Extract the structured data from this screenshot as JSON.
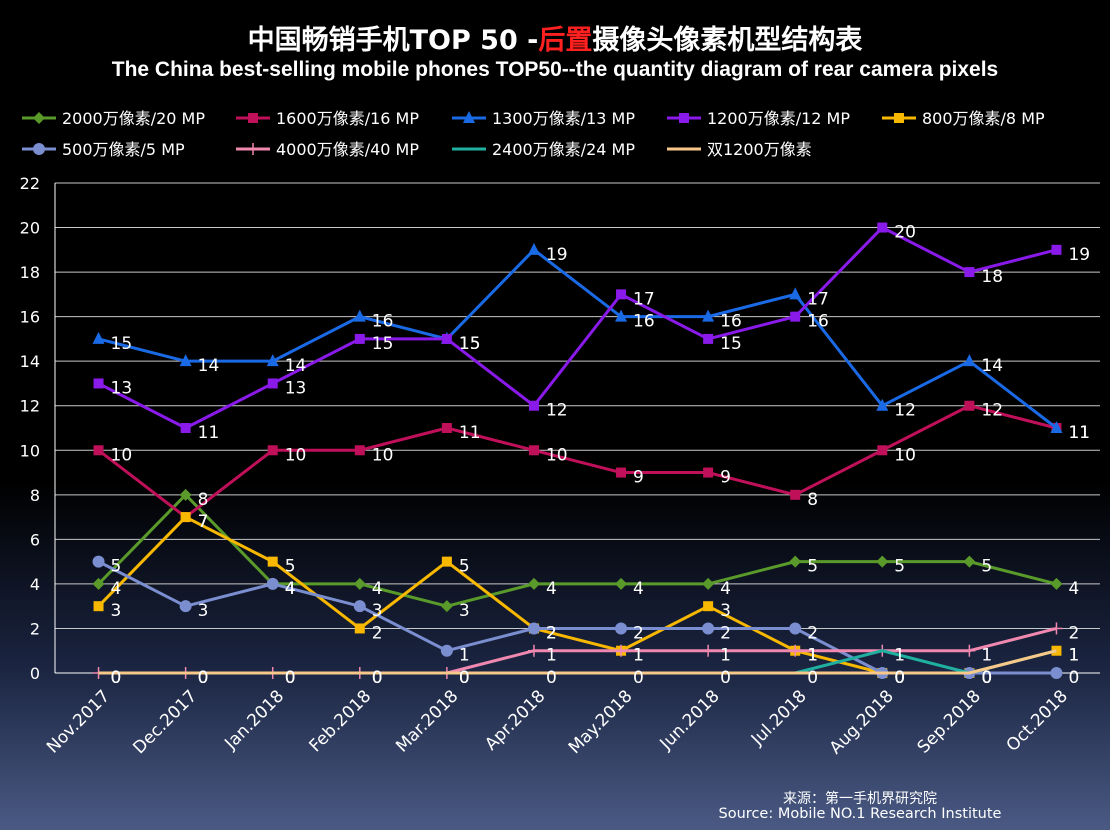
{
  "header": {
    "title_part1": "中国畅销手机TOP 50 -",
    "title_red": "后置",
    "title_part2": "摄像头像素机型结构表",
    "subtitle": "The China best-selling mobile phones TOP50--the quantity diagram of rear camera pixels"
  },
  "source": {
    "cn": "来源：第一手机界研究院",
    "en": "Source: Mobile NO.1 Research Institute"
  },
  "chart_data": {
    "type": "line",
    "title": "中国畅销手机TOP 50 -后置摄像头像素机型结构表",
    "xlabel": "",
    "ylabel": "",
    "ylim": [
      0,
      22
    ],
    "yticks": [
      0,
      2,
      4,
      6,
      8,
      10,
      12,
      14,
      16,
      18,
      20,
      22
    ],
    "grid": true,
    "legend_position": "top",
    "categories": [
      "Nov.2017",
      "Dec.2017",
      "Jan.2018",
      "Feb.2018",
      "Mar.2018",
      "Apr.2018",
      "May.2018",
      "Jun.2018",
      "Jul.2018",
      "Aug.2018",
      "Sep.2018",
      "Oct.2018"
    ],
    "series": [
      {
        "name": "2000万像素/20 MP",
        "color": "#5a9a2a",
        "marker": "diamond",
        "values": [
          4,
          8,
          4,
          4,
          3,
          4,
          4,
          4,
          5,
          5,
          5,
          4
        ]
      },
      {
        "name": "1600万像素/16 MP",
        "color": "#c0105a",
        "marker": "square",
        "values": [
          10,
          7,
          10,
          10,
          11,
          10,
          9,
          9,
          8,
          10,
          12,
          11
        ]
      },
      {
        "name": "1300万像素/13 MP",
        "color": "#1a6ae6",
        "marker": "triangle",
        "values": [
          15,
          14,
          14,
          16,
          15,
          19,
          16,
          16,
          17,
          12,
          14,
          11
        ]
      },
      {
        "name": "1200万像素/12 MP",
        "color": "#8a1aea",
        "marker": "square",
        "values": [
          13,
          11,
          13,
          15,
          15,
          12,
          17,
          15,
          16,
          20,
          18,
          19
        ]
      },
      {
        "name": "800万像素/8 MP",
        "color": "#f8b800",
        "marker": "square",
        "values": [
          3,
          7,
          5,
          2,
          5,
          2,
          1,
          3,
          1,
          0,
          0,
          1
        ]
      },
      {
        "name": "500万像素/5 MP",
        "color": "#7a8ed0",
        "marker": "circle",
        "values": [
          5,
          3,
          4,
          3,
          1,
          2,
          2,
          2,
          2,
          0,
          0,
          0
        ]
      },
      {
        "name": "4000万像素/40 MP",
        "color": "#f088b0",
        "marker": "plus",
        "values": [
          0,
          0,
          0,
          0,
          0,
          1,
          1,
          1,
          1,
          1,
          1,
          2
        ]
      },
      {
        "name": "2400万像素/24 MP",
        "color": "#20b0a0",
        "marker": "none",
        "values": [
          0,
          0,
          0,
          0,
          0,
          0,
          0,
          0,
          0,
          1,
          0,
          1
        ]
      },
      {
        "name": "双1200万像素",
        "color": "#f8c88a",
        "marker": "none",
        "values": [
          0,
          0,
          0,
          0,
          0,
          0,
          0,
          0,
          0,
          0,
          0,
          1
        ]
      }
    ]
  }
}
